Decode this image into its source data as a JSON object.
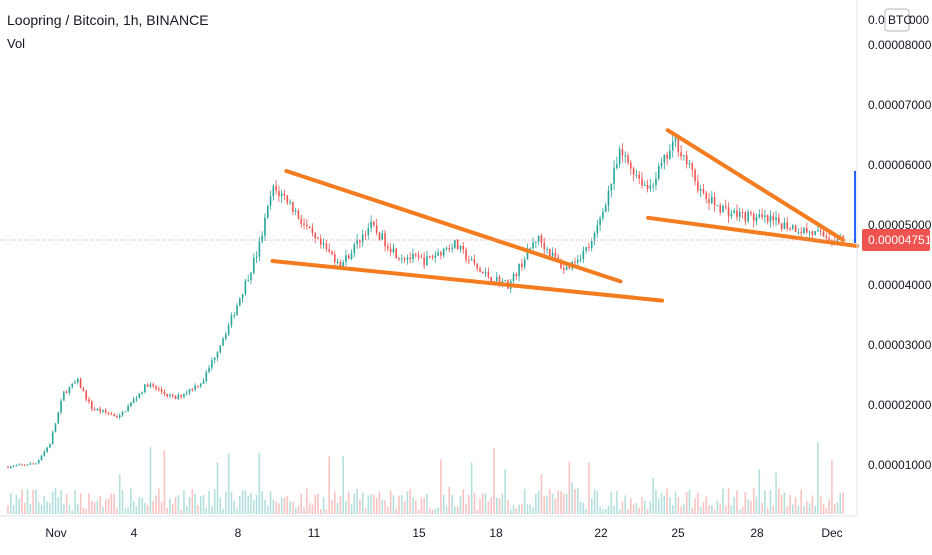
{
  "header": {
    "symbol_line": "Loopring / Bitcoin, 1h, BINANCE",
    "volume_label": "Vol"
  },
  "colors": {
    "up": "#26a69a",
    "down": "#ef5350",
    "trendline": "#f47c20",
    "last_price_bg": "#ef5350",
    "last_price_line": "#ef9a9a"
  },
  "chart_data": {
    "type": "candlestick",
    "title": "Loopring / Bitcoin, 1h, BINANCE",
    "subtitle": "Vol",
    "y_unit_label": "BTC",
    "y_ticks": [
      "0.00008000",
      "0.00007000",
      "0.00006000",
      "0.00005000",
      "0.00004000",
      "0.00003000",
      "0.00002000",
      "0.00001000"
    ],
    "y_top_tick": "0.0",
    "ylim": [
      4.5e-06,
      8.45e-05
    ],
    "x_ticks": [
      "Nov",
      "4",
      "8",
      "11",
      "15",
      "18",
      "22",
      "25",
      "28",
      "Dec"
    ],
    "last_price": "0.00004751",
    "price_path_approx": [
      {
        "t": "Nov 1",
        "price": 9.7e-06
      },
      {
        "t": "Nov 2",
        "price": 1.03e-05
      },
      {
        "t": "Nov 2.5",
        "price": 1.35e-05
      },
      {
        "t": "Nov 3",
        "price": 2.2e-05
      },
      {
        "t": "Nov 3.5",
        "price": 2.4e-05
      },
      {
        "t": "Nov 4",
        "price": 1.95e-05
      },
      {
        "t": "Nov 5",
        "price": 1.8e-05
      },
      {
        "t": "Nov 6",
        "price": 2.35e-05
      },
      {
        "t": "Nov 7",
        "price": 2.1e-05
      },
      {
        "t": "Nov 8",
        "price": 2.4e-05
      },
      {
        "t": "Nov 9",
        "price": 3.4e-05
      },
      {
        "t": "Nov 10",
        "price": 4.6e-05
      },
      {
        "t": "Nov 10.5",
        "price": 5.6e-05
      },
      {
        "t": "Nov 11",
        "price": 5.45e-05
      },
      {
        "t": "Nov 12",
        "price": 4.75e-05
      },
      {
        "t": "Nov 13",
        "price": 4.35e-05
      },
      {
        "t": "Nov 14",
        "price": 5e-05
      },
      {
        "t": "Nov 15",
        "price": 4.5e-05
      },
      {
        "t": "Nov 16",
        "price": 4.4e-05
      },
      {
        "t": "Nov 17",
        "price": 4.7e-05
      },
      {
        "t": "Nov 18",
        "price": 4.2e-05
      },
      {
        "t": "Nov 19",
        "price": 4e-05
      },
      {
        "t": "Nov 20",
        "price": 4.8e-05
      },
      {
        "t": "Nov 21",
        "price": 4.25e-05
      },
      {
        "t": "Nov 22",
        "price": 4.7e-05
      },
      {
        "t": "Nov 23",
        "price": 6.2e-05
      },
      {
        "t": "Nov 24",
        "price": 5.6e-05
      },
      {
        "t": "Nov 25",
        "price": 6.4e-05
      },
      {
        "t": "Nov 26",
        "price": 5.45e-05
      },
      {
        "t": "Nov 27",
        "price": 5.2e-05
      },
      {
        "t": "Nov 28",
        "price": 5.1e-05
      },
      {
        "t": "Nov 29",
        "price": 5e-05
      },
      {
        "t": "Nov 30",
        "price": 4.85e-05
      },
      {
        "t": "Dec 1",
        "price": 4.75e-05
      }
    ],
    "annotations": [
      {
        "type": "trendline",
        "color": "orange",
        "from": {
          "t": "Nov 11",
          "price": 5.9e-05
        },
        "to": {
          "t": "Nov 23",
          "price": 4.06e-05
        }
      },
      {
        "type": "trendline",
        "color": "orange",
        "from": {
          "t": "Nov 10.5",
          "price": 4.4e-05
        },
        "to": {
          "t": "Nov 24.5",
          "price": 3.74e-05
        }
      },
      {
        "type": "trendline",
        "color": "orange",
        "from": {
          "t": "Nov 24.7",
          "price": 6.58e-05
        },
        "to": {
          "t": "Dec 1",
          "price": 4.75e-05
        }
      },
      {
        "type": "trendline",
        "color": "orange",
        "from": {
          "t": "Nov 24",
          "price": 5.12e-05
        },
        "to": {
          "t": "Dec 1.5",
          "price": 4.65e-05
        }
      }
    ],
    "grid": false,
    "legend": "none"
  }
}
